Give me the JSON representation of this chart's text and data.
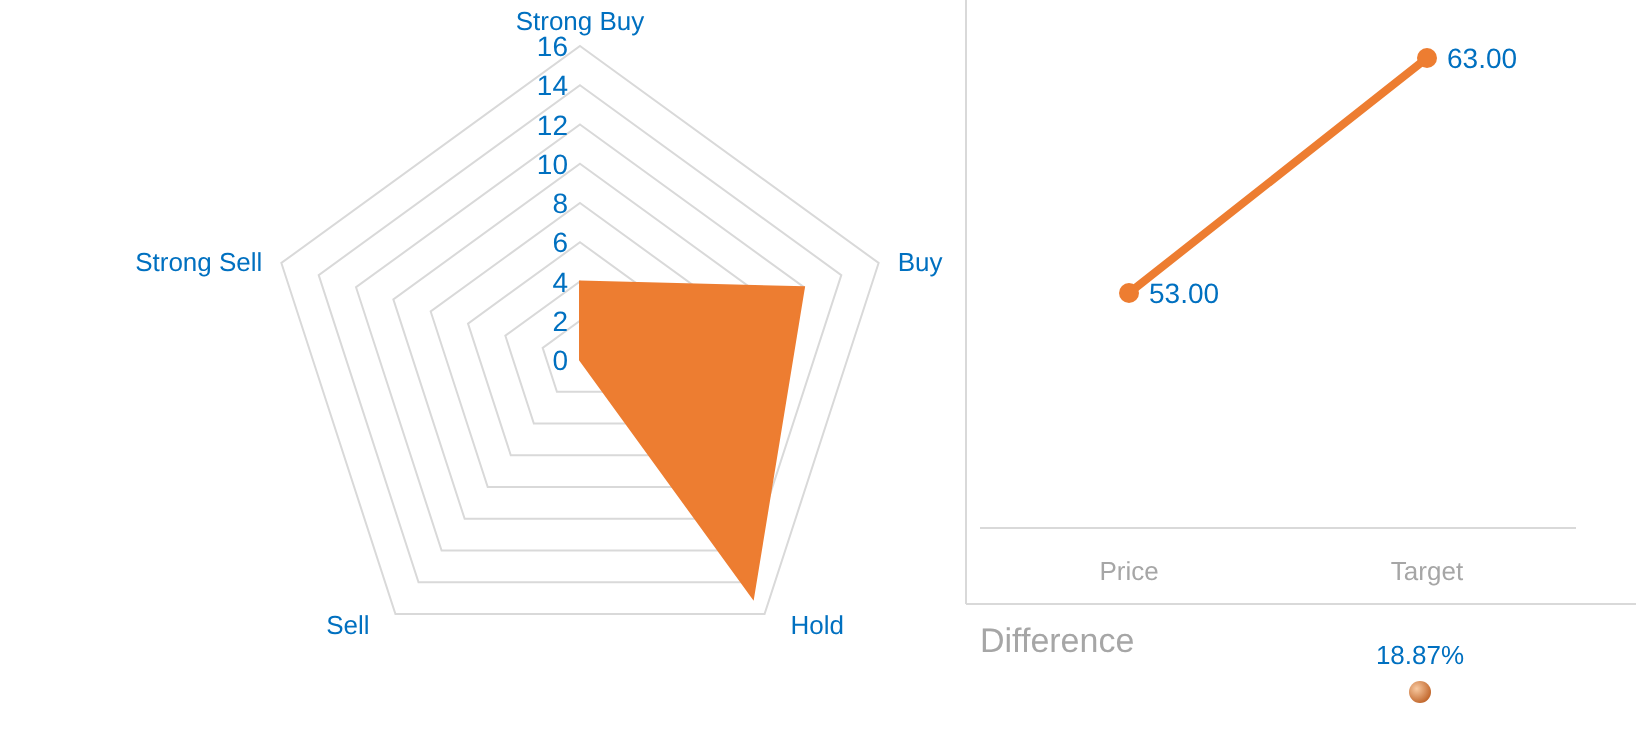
{
  "chart_data": [
    {
      "type": "radar",
      "categories": [
        "Strong Buy",
        "Buy",
        "Hold",
        "Sell",
        "Strong Sell"
      ],
      "series": [
        {
          "color": "#ed7d31",
          "values": [
            4,
            12,
            15,
            0,
            0
          ]
        }
      ],
      "ylim": [
        0,
        16
      ],
      "yticks": [
        0,
        2,
        4,
        6,
        8,
        10,
        12,
        14,
        16
      ],
      "grid": true
    },
    {
      "type": "line",
      "categories": [
        "Price",
        "Target"
      ],
      "series": [
        {
          "color": "#ed7d31",
          "values": [
            53,
            63
          ],
          "value_labels": [
            "53.00",
            "63.00"
          ]
        }
      ],
      "marker": "circle",
      "line_style": "solid",
      "tick_labels": "x"
    },
    {
      "type": "other",
      "title": "Difference",
      "annotations": [
        "18.87%"
      ]
    }
  ]
}
